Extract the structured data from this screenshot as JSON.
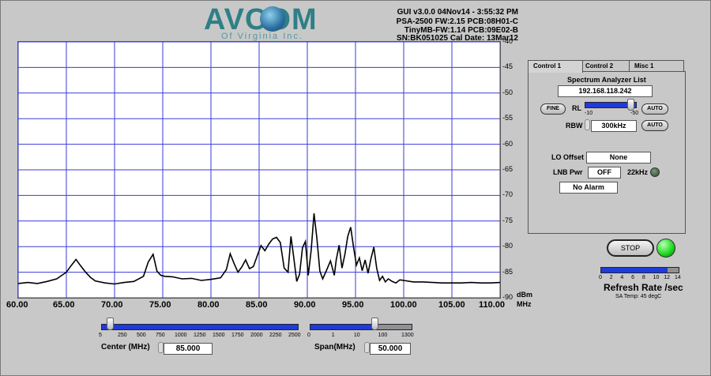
{
  "logo": {
    "main": "AVCOM",
    "sub": "Of Virginia Inc."
  },
  "info": {
    "line1": "GUI v3.0.0  04Nov14 - 3:55:32 PM",
    "line2": "PSA-2500 FW:2.15 PCB:08H01-C",
    "line3": "TinyMB-FW:1.14  PCB:09E02-B",
    "line4": "SN:BK051025  Cal Date: 13Mar12"
  },
  "chart_data": {
    "type": "line",
    "ylabel": "dBm",
    "xlabel": "MHz",
    "xlim": [
      60,
      110
    ],
    "ylim": [
      -90,
      -40
    ],
    "x_ticks": [
      "60.00",
      "65.00",
      "70.00",
      "75.00",
      "80.00",
      "85.00",
      "90.00",
      "95.00",
      "100.00",
      "105.00",
      "110.00"
    ],
    "y_ticks": [
      "-40",
      "-45",
      "-50",
      "-55",
      "-60",
      "-65",
      "-70",
      "-75",
      "-80",
      "-85",
      "-90"
    ],
    "grid": true,
    "series": [
      {
        "x": [
          60,
          61,
          62,
          63,
          64,
          65,
          65.5,
          66,
          66.5,
          67,
          67.5,
          68,
          69,
          70,
          71,
          72,
          73,
          73.5,
          74,
          74.4,
          74.8,
          75.2,
          76,
          77,
          78,
          79,
          80,
          81,
          81.6,
          82,
          82.4,
          82.8,
          83.2,
          83.6,
          84,
          84.4,
          84.8,
          85.2,
          85.6,
          86,
          86.4,
          86.8,
          87.2,
          87.6,
          88,
          88.3,
          88.6,
          88.9,
          89.2,
          89.5,
          89.8,
          90.1,
          90.4,
          90.7,
          91,
          91.3,
          91.6,
          92,
          92.4,
          92.8,
          93,
          93.3,
          93.6,
          93.9,
          94.2,
          94.5,
          94.8,
          95.1,
          95.4,
          95.7,
          96,
          96.3,
          96.6,
          96.9,
          97.2,
          97.5,
          97.8,
          98.1,
          98.4,
          98.8,
          99.2,
          99.6,
          100,
          101,
          102,
          103,
          104,
          105,
          106,
          107,
          108,
          109,
          110
        ],
        "y": [
          -87.2,
          -87.0,
          -87.2,
          -86.8,
          -86.3,
          -85,
          -83.7,
          -82.5,
          -83.8,
          -85,
          -86,
          -86.7,
          -87.1,
          -87.3,
          -87.0,
          -86.8,
          -85.8,
          -83,
          -81.5,
          -84.8,
          -85.6,
          -85.8,
          -85.9,
          -86.3,
          -86.2,
          -86.6,
          -86.4,
          -86.1,
          -84.5,
          -81.4,
          -83.3,
          -85,
          -84,
          -82.6,
          -84.3,
          -83.9,
          -81.8,
          -79.8,
          -80.8,
          -79.5,
          -78.5,
          -78.2,
          -79.2,
          -84.2,
          -85,
          -78,
          -82.2,
          -86.8,
          -85.4,
          -80.2,
          -79,
          -85.6,
          -80.7,
          -73.5,
          -78.5,
          -84.8,
          -86.3,
          -84.6,
          -82.8,
          -85.6,
          -82.6,
          -79.7,
          -84.2,
          -81.5,
          -78,
          -76.2,
          -80.2,
          -83.6,
          -82.2,
          -84.7,
          -82.6,
          -85.2,
          -82.4,
          -80.1,
          -84.2,
          -86.6,
          -85.8,
          -86.9,
          -86.3,
          -86.8,
          -87.1,
          -86.5,
          -86.6,
          -86.9,
          -86.9,
          -87.0,
          -87.1,
          -87.1,
          -87.1,
          -87.0,
          -87.1,
          -87.1,
          -87.0
        ]
      }
    ]
  },
  "tabs": [
    {
      "label": "Control 1",
      "active": true
    },
    {
      "label": "Control 2",
      "active": false
    },
    {
      "label": "Misc 1",
      "active": false
    }
  ],
  "control": {
    "list_label": "Spectrum Analyzer List",
    "ip": "192.168.118.242",
    "fine_label": "FINE",
    "rl_label": "RL",
    "rl_min": "-10",
    "rl_max": "-50",
    "rl_value": 0.9,
    "rl_auto": "AUTO",
    "rbw_label": "RBW",
    "rbw_value": "300kHz",
    "rbw_auto": "AUTO",
    "lo_label": "LO Offset",
    "lo_value": "None",
    "lnb_label": "LNB Pwr",
    "lnb_value": "OFF",
    "khz_label": "22kHz",
    "alarm_value": "No Alarm"
  },
  "run": {
    "stop_label": "STOP",
    "led_color": "#22dd22"
  },
  "refresh": {
    "ticks": [
      "0",
      "2",
      "4",
      "6",
      "8",
      "10",
      "12",
      "14"
    ],
    "value_fraction": 0.86,
    "title": "Refresh Rate /sec",
    "temp": "SA Temp: 45 degC"
  },
  "center": {
    "ticks": [
      "5",
      "250",
      "500",
      "750",
      "1000",
      "1250",
      "1500",
      "1750",
      "2000",
      "2250",
      "2500"
    ],
    "value_fraction": 0.03,
    "label": "Center (MHz)",
    "value": "85.000"
  },
  "span": {
    "ticks": [
      "0",
      "1",
      "10",
      "100",
      "1300"
    ],
    "value_fraction": 0.64,
    "label": "Span(MHz)",
    "value": "50.000"
  },
  "colors": {
    "accent": "#1e3cd8",
    "grid": "#3a3adb",
    "background": "#c8c8c8"
  }
}
